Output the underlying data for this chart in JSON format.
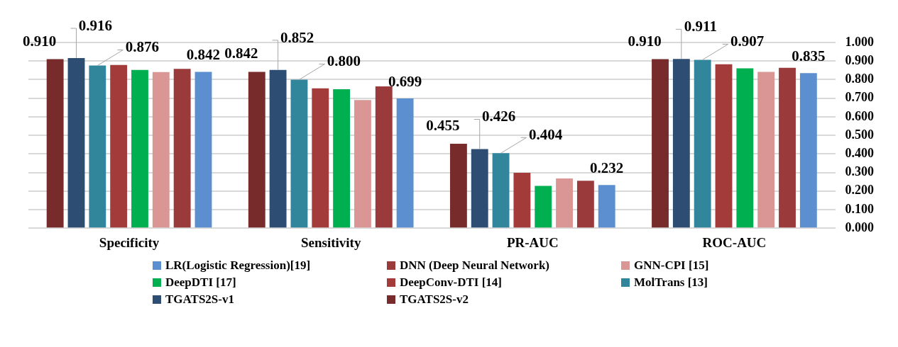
{
  "chart_data": {
    "type": "bar",
    "categories": [
      "Specificity",
      "Sensitivity",
      "PR-AUC",
      "ROC-AUC"
    ],
    "series": [
      {
        "name": "TGATS2S-v2",
        "color": "#772b2b",
        "values": [
          0.91,
          0.842,
          0.455,
          0.91
        ],
        "value_labels": [
          "0.910",
          "0.842",
          "0.455",
          "0.910"
        ]
      },
      {
        "name": "TGATS2S-v1",
        "color": "#2e4d73",
        "values": [
          0.916,
          0.852,
          0.426,
          0.911
        ],
        "value_labels": [
          "0.916",
          "0.852",
          "0.426",
          "0.911"
        ]
      },
      {
        "name": "MolTrans [13]",
        "color": "#31869b",
        "values": [
          0.876,
          0.8,
          0.404,
          0.907
        ],
        "value_labels": [
          "0.876",
          "0.800",
          "0.404",
          "0.907"
        ]
      },
      {
        "name": "DeepConv-DTI [14]",
        "color": "#a33b3b",
        "values": [
          0.879,
          0.753,
          0.298,
          0.883
        ]
      },
      {
        "name": "DeepDTI [17]",
        "color": "#00b050",
        "values": [
          0.852,
          0.748,
          0.228,
          0.861
        ]
      },
      {
        "name": "GNN-CPI [15]",
        "color": "#d99694",
        "values": [
          0.841,
          0.69,
          0.268,
          0.842
        ]
      },
      {
        "name": "DNN (Deep Neural Network)",
        "color": "#9b3a3a",
        "values": [
          0.858,
          0.764,
          0.255,
          0.864
        ]
      },
      {
        "name": "LR(Logistic Regression)[19]",
        "color": "#5b8fd0",
        "values": [
          0.842,
          0.699,
          0.232,
          0.835
        ],
        "value_labels": [
          "0.842",
          "0.699",
          "0.232",
          "0.835"
        ]
      }
    ],
    "ylim": [
      0,
      1
    ],
    "yticks": [
      {
        "value": 0,
        "label": "0.000"
      },
      {
        "value": 0.1,
        "label": "0.100"
      },
      {
        "value": 0.2,
        "label": "0.200"
      },
      {
        "value": 0.3,
        "label": "0.300"
      },
      {
        "value": 0.4,
        "label": "0.400"
      },
      {
        "value": 0.5,
        "label": "0.500"
      },
      {
        "value": 0.6,
        "label": "0.600"
      },
      {
        "value": 0.7,
        "label": "0.700"
      },
      {
        "value": 0.8,
        "label": "0.800"
      },
      {
        "value": 0.9,
        "label": "0.900"
      },
      {
        "value": 1,
        "label": "1.000"
      }
    ],
    "grid": "y",
    "legend": "bottom"
  }
}
